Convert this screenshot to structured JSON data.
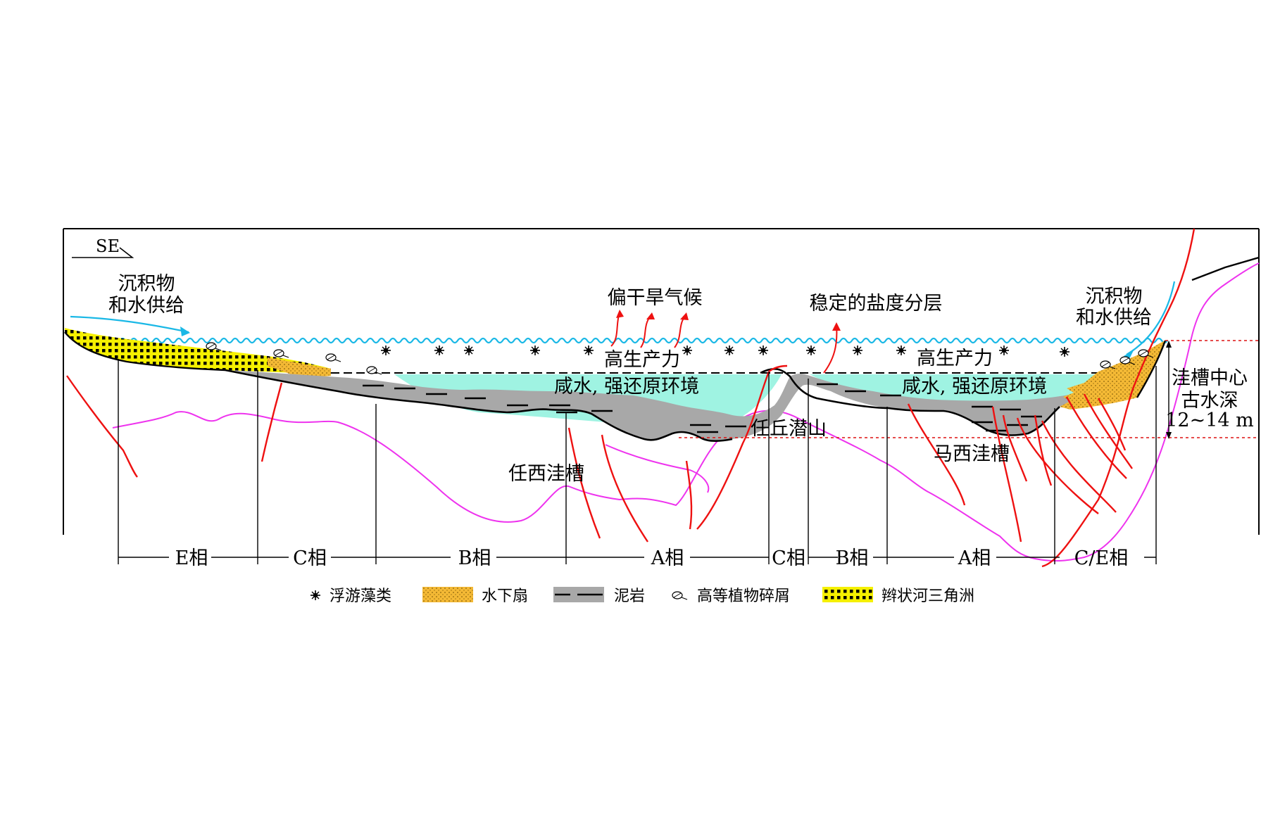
{
  "direction": "SE",
  "annotations": {
    "supply_left": [
      "沉积物",
      "和水供给"
    ],
    "supply_right": [
      "沉积物",
      "和水供给"
    ],
    "climate": "偏干旱气候",
    "salinity": "稳定的盐度分层",
    "productivity_left": "高生产力",
    "productivity_right": "高生产力",
    "env_left": "咸水, 强还原环境",
    "env_right": "咸水, 强还原环境",
    "buried_hill": "任丘潜山",
    "trough_left": "任西洼槽",
    "trough_right": "马西洼槽",
    "depth_label": [
      "洼槽中心",
      "古水深",
      "12~14 m"
    ]
  },
  "facies": [
    "E相",
    "C相",
    "B相",
    "A相",
    "C相",
    "B相",
    "A相",
    "C/E相"
  ],
  "legend": [
    {
      "icon": "plankton-icon",
      "label": "浮游藻类"
    },
    {
      "icon": "fan-swatch",
      "label": "水下扇"
    },
    {
      "icon": "mudstone-swatch",
      "label": "泥岩"
    },
    {
      "icon": "plant-debris-icon",
      "label": "高等植物碎屑"
    },
    {
      "icon": "braided-delta-swatch",
      "label": "辫状河三角洲"
    }
  ],
  "colors": {
    "water_surface": "#1ab8e6",
    "saline_water": "#9ff3e2",
    "mudstone": "#a8a8a8",
    "underwater_fan": "#f4b935",
    "braided_delta": "#f5f000",
    "fault": "#ee1111",
    "basement": "#ee33ee",
    "depth_guide": "#dd1111"
  }
}
